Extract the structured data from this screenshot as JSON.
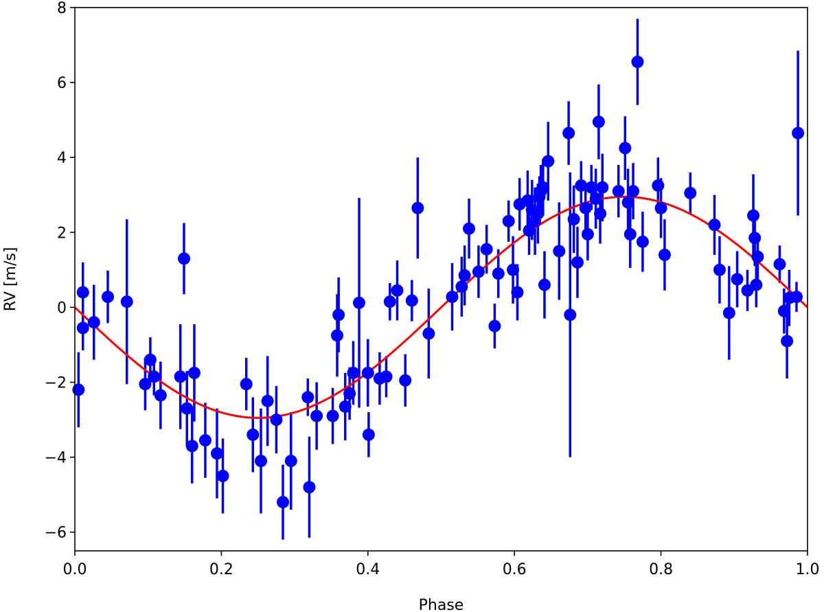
{
  "chart_data": {
    "type": "scatter",
    "title": "",
    "xlabel": "Phase",
    "ylabel": "RV [m/s]",
    "xlim": [
      0.0,
      1.0
    ],
    "ylim": [
      -6.5,
      8.0
    ],
    "xticks": [
      {
        "value": 0.0,
        "label": "0.0"
      },
      {
        "value": 0.2,
        "label": "0.2"
      },
      {
        "value": 0.4,
        "label": "0.4"
      },
      {
        "value": 0.6,
        "label": "0.6"
      },
      {
        "value": 0.8,
        "label": "0.8"
      },
      {
        "value": 1.0,
        "label": "1.0"
      }
    ],
    "yticks": [
      {
        "value": -6,
        "label": "−6"
      },
      {
        "value": -4,
        "label": "−4"
      },
      {
        "value": -2,
        "label": "−2"
      },
      {
        "value": 0,
        "label": "0"
      },
      {
        "value": 2,
        "label": "2"
      },
      {
        "value": 4,
        "label": "4"
      },
      {
        "value": 6,
        "label": "6"
      },
      {
        "value": 8,
        "label": "8"
      }
    ],
    "grid": false,
    "series": [
      {
        "kind": "errorbar",
        "color": "#0000ff",
        "points": [
          {
            "x": 0.005,
            "y": -2.2,
            "err": 1.0
          },
          {
            "x": 0.011,
            "y": 0.4,
            "err": 0.8
          },
          {
            "x": 0.011,
            "y": -0.55,
            "err": 0.6
          },
          {
            "x": 0.026,
            "y": -0.4,
            "err": 1.0
          },
          {
            "x": 0.045,
            "y": 0.28,
            "err": 0.7
          },
          {
            "x": 0.071,
            "y": 0.15,
            "err": 2.2
          },
          {
            "x": 0.096,
            "y": -2.05,
            "err": 0.7
          },
          {
            "x": 0.103,
            "y": -1.4,
            "err": 0.6
          },
          {
            "x": 0.108,
            "y": -1.85,
            "err": 0.5
          },
          {
            "x": 0.117,
            "y": -2.35,
            "err": 0.9
          },
          {
            "x": 0.144,
            "y": -1.85,
            "err": 1.4
          },
          {
            "x": 0.149,
            "y": 1.3,
            "err": 0.95
          },
          {
            "x": 0.153,
            "y": -2.7,
            "err": 1.0
          },
          {
            "x": 0.16,
            "y": -3.7,
            "err": 1.0
          },
          {
            "x": 0.163,
            "y": -1.75,
            "err": 1.3
          },
          {
            "x": 0.178,
            "y": -3.55,
            "err": 1.0
          },
          {
            "x": 0.194,
            "y": -3.9,
            "err": 1.2
          },
          {
            "x": 0.202,
            "y": -4.5,
            "err": 1.0
          },
          {
            "x": 0.234,
            "y": -2.05,
            "err": 0.7
          },
          {
            "x": 0.243,
            "y": -3.4,
            "err": 1.0
          },
          {
            "x": 0.254,
            "y": -4.1,
            "err": 1.4
          },
          {
            "x": 0.263,
            "y": -2.5,
            "err": 1.2
          },
          {
            "x": 0.275,
            "y": -3.0,
            "err": 0.9
          },
          {
            "x": 0.284,
            "y": -5.2,
            "err": 1.0
          },
          {
            "x": 0.295,
            "y": -4.1,
            "err": 1.3
          },
          {
            "x": 0.318,
            "y": -2.4,
            "err": 0.5
          },
          {
            "x": 0.32,
            "y": -4.8,
            "err": 1.35
          },
          {
            "x": 0.33,
            "y": -2.9,
            "err": 0.9
          },
          {
            "x": 0.352,
            "y": -2.9,
            "err": 0.75
          },
          {
            "x": 0.358,
            "y": -0.75,
            "err": 1.1
          },
          {
            "x": 0.36,
            "y": -0.2,
            "err": 1.0
          },
          {
            "x": 0.369,
            "y": -2.65,
            "err": 0.9
          },
          {
            "x": 0.375,
            "y": -2.3,
            "err": 0.7
          },
          {
            "x": 0.38,
            "y": -1.75,
            "err": 0.85
          },
          {
            "x": 0.388,
            "y": 0.12,
            "err": 2.8
          },
          {
            "x": 0.4,
            "y": -1.75,
            "err": 0.9
          },
          {
            "x": 0.401,
            "y": -3.4,
            "err": 0.6
          },
          {
            "x": 0.416,
            "y": -1.9,
            "err": 0.7
          },
          {
            "x": 0.425,
            "y": -1.85,
            "err": 0.55
          },
          {
            "x": 0.43,
            "y": 0.15,
            "err": 0.5
          },
          {
            "x": 0.44,
            "y": 0.45,
            "err": 0.8
          },
          {
            "x": 0.451,
            "y": -1.95,
            "err": 0.7
          },
          {
            "x": 0.46,
            "y": 0.18,
            "err": 0.55
          },
          {
            "x": 0.468,
            "y": 2.65,
            "err": 1.35
          },
          {
            "x": 0.483,
            "y": -0.7,
            "err": 1.2
          },
          {
            "x": 0.515,
            "y": 0.28,
            "err": 0.9
          },
          {
            "x": 0.528,
            "y": 0.55,
            "err": 0.8
          },
          {
            "x": 0.532,
            "y": 0.85,
            "err": 0.8
          },
          {
            "x": 0.538,
            "y": 2.1,
            "err": 0.8
          },
          {
            "x": 0.551,
            "y": 0.95,
            "err": 0.7
          },
          {
            "x": 0.562,
            "y": 1.55,
            "err": 0.65
          },
          {
            "x": 0.573,
            "y": -0.5,
            "err": 0.6
          },
          {
            "x": 0.578,
            "y": 0.9,
            "err": 0.65
          },
          {
            "x": 0.592,
            "y": 2.3,
            "err": 0.55
          },
          {
            "x": 0.598,
            "y": 1.0,
            "err": 0.9
          },
          {
            "x": 0.604,
            "y": 0.4,
            "err": 0.75
          },
          {
            "x": 0.607,
            "y": 2.75,
            "err": 0.7
          },
          {
            "x": 0.618,
            "y": 2.85,
            "err": 0.8
          },
          {
            "x": 0.62,
            "y": 2.05,
            "err": 0.65
          },
          {
            "x": 0.624,
            "y": 2.6,
            "err": 0.8
          },
          {
            "x": 0.628,
            "y": 2.3,
            "err": 0.9
          },
          {
            "x": 0.632,
            "y": 2.5,
            "err": 0.8
          },
          {
            "x": 0.634,
            "y": 2.95,
            "err": 0.55
          },
          {
            "x": 0.636,
            "y": 3.1,
            "err": 0.7
          },
          {
            "x": 0.639,
            "y": 3.2,
            "err": 0.75
          },
          {
            "x": 0.641,
            "y": 0.6,
            "err": 0.9
          },
          {
            "x": 0.646,
            "y": 3.9,
            "err": 1.05
          },
          {
            "x": 0.661,
            "y": 1.5,
            "err": 1.3
          },
          {
            "x": 0.674,
            "y": 4.65,
            "err": 0.85
          },
          {
            "x": 0.676,
            "y": -0.2,
            "err": 3.8
          },
          {
            "x": 0.681,
            "y": 2.35,
            "err": 0.9
          },
          {
            "x": 0.686,
            "y": 1.2,
            "err": 0.95
          },
          {
            "x": 0.691,
            "y": 3.25,
            "err": 0.65
          },
          {
            "x": 0.697,
            "y": 2.65,
            "err": 0.65
          },
          {
            "x": 0.7,
            "y": 1.95,
            "err": 0.7
          },
          {
            "x": 0.705,
            "y": 3.2,
            "err": 0.6
          },
          {
            "x": 0.711,
            "y": 2.9,
            "err": 0.8
          },
          {
            "x": 0.715,
            "y": 4.95,
            "err": 1.0
          },
          {
            "x": 0.717,
            "y": 2.5,
            "err": 0.8
          },
          {
            "x": 0.72,
            "y": 3.2,
            "err": 0.9
          },
          {
            "x": 0.742,
            "y": 3.1,
            "err": 0.7
          },
          {
            "x": 0.751,
            "y": 4.25,
            "err": 0.85
          },
          {
            "x": 0.755,
            "y": 2.8,
            "err": 0.9
          },
          {
            "x": 0.758,
            "y": 1.95,
            "err": 0.9
          },
          {
            "x": 0.762,
            "y": 3.1,
            "err": 0.75
          },
          {
            "x": 0.768,
            "y": 6.55,
            "err": 1.15
          },
          {
            "x": 0.775,
            "y": 1.75,
            "err": 0.8
          },
          {
            "x": 0.796,
            "y": 3.25,
            "err": 0.75
          },
          {
            "x": 0.8,
            "y": 2.65,
            "err": 0.8
          },
          {
            "x": 0.805,
            "y": 1.4,
            "err": 0.95
          },
          {
            "x": 0.84,
            "y": 3.05,
            "err": 0.55
          },
          {
            "x": 0.873,
            "y": 2.2,
            "err": 0.8
          },
          {
            "x": 0.88,
            "y": 1.0,
            "err": 0.9
          },
          {
            "x": 0.893,
            "y": -0.15,
            "err": 1.25
          },
          {
            "x": 0.904,
            "y": 0.75,
            "err": 0.75
          },
          {
            "x": 0.918,
            "y": 0.45,
            "err": 0.55
          },
          {
            "x": 0.926,
            "y": 2.45,
            "err": 1.1
          },
          {
            "x": 0.928,
            "y": 1.85,
            "err": 0.75
          },
          {
            "x": 0.93,
            "y": 0.6,
            "err": 0.6
          },
          {
            "x": 0.932,
            "y": 1.35,
            "err": 0.6
          },
          {
            "x": 0.962,
            "y": 1.15,
            "err": 0.5
          },
          {
            "x": 0.968,
            "y": -0.1,
            "err": 0.6
          },
          {
            "x": 0.972,
            "y": -0.9,
            "err": 1.0
          },
          {
            "x": 0.975,
            "y": 0.25,
            "err": 0.75
          },
          {
            "x": 0.985,
            "y": 0.28,
            "err": 0.4
          },
          {
            "x": 0.987,
            "y": 4.65,
            "err": 2.2
          }
        ]
      },
      {
        "kind": "model",
        "color": "#ff0000",
        "function": "-K*sin(2*pi*phase)",
        "K": 2.95
      }
    ]
  }
}
